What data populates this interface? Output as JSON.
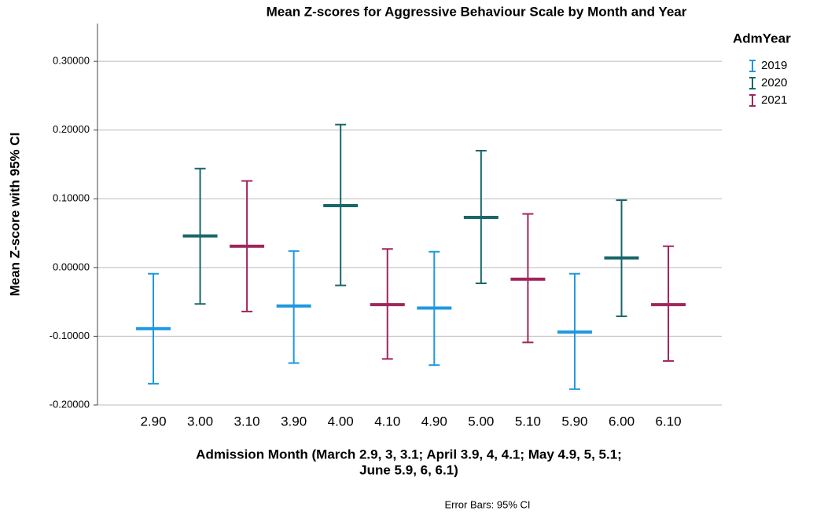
{
  "chart_data": {
    "type": "errorbar",
    "title": "Mean Z-scores for Aggressive Behaviour Scale by Month and Year",
    "ylabel": "Mean Z-score with 95% CI",
    "xlabel": [
      "Admission Month (March 2.9, 3, 3.1; April 3.9, 4, 4.1; May 4.9, 5, 5.1;",
      "June 5.9, 6, 6.1)"
    ],
    "footnote": "Error Bars: 95% CI",
    "legend_title": "AdmYear",
    "categories": [
      "2.90",
      "3.00",
      "3.10",
      "3.90",
      "4.00",
      "4.10",
      "4.90",
      "5.00",
      "5.10",
      "5.90",
      "6.00",
      "6.10"
    ],
    "ylim": [
      -0.2,
      0.355
    ],
    "yticks": [
      {
        "value": -0.2,
        "label": "-0.20000"
      },
      {
        "value": -0.1,
        "label": "-0.10000"
      },
      {
        "value": 0,
        "label": "0.00000"
      },
      {
        "value": 0.1,
        "label": "0.10000"
      },
      {
        "value": 0.2,
        "label": "0.20000"
      },
      {
        "value": 0.3,
        "label": "0.30000"
      }
    ],
    "grid": true,
    "series": [
      {
        "name": "2019",
        "color": "#1e98e0",
        "values": [
          -0.089,
          null,
          null,
          -0.056,
          null,
          null,
          -0.059,
          null,
          null,
          -0.094,
          null,
          null
        ],
        "lower": [
          -0.169,
          null,
          null,
          -0.139,
          null,
          null,
          -0.142,
          null,
          null,
          -0.177,
          null,
          null
        ],
        "upper": [
          -0.009,
          null,
          null,
          0.024,
          null,
          null,
          0.023,
          null,
          null,
          -0.009,
          null,
          null
        ]
      },
      {
        "name": "2020",
        "color": "#18676a",
        "values": [
          null,
          0.046,
          null,
          null,
          0.09,
          null,
          null,
          0.073,
          null,
          null,
          0.014,
          null
        ],
        "lower": [
          null,
          -0.053,
          null,
          null,
          -0.026,
          null,
          null,
          -0.023,
          null,
          null,
          -0.071,
          null
        ],
        "upper": [
          null,
          0.144,
          null,
          null,
          0.208,
          null,
          null,
          0.17,
          null,
          null,
          0.098,
          null
        ]
      },
      {
        "name": "2021",
        "color": "#a0265d",
        "values": [
          null,
          null,
          0.031,
          null,
          null,
          -0.054,
          null,
          null,
          -0.017,
          null,
          null,
          -0.054
        ],
        "lower": [
          null,
          null,
          -0.064,
          null,
          null,
          -0.133,
          null,
          null,
          -0.109,
          null,
          null,
          -0.136
        ],
        "upper": [
          null,
          null,
          0.126,
          null,
          null,
          0.027,
          null,
          null,
          0.078,
          null,
          null,
          0.031
        ]
      }
    ]
  }
}
